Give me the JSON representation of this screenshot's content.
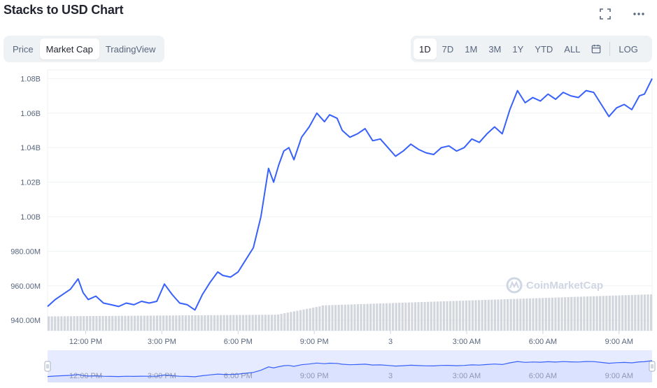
{
  "header": {
    "title": "Stacks to USD Chart"
  },
  "icons": {
    "fullscreen": "fullscreen-icon",
    "more": "more-icon",
    "calendar": "calendar-icon"
  },
  "view_tabs": [
    {
      "label": "Price",
      "active": false
    },
    {
      "label": "Market Cap",
      "active": true
    },
    {
      "label": "TradingView",
      "active": false
    }
  ],
  "range_tabs": [
    {
      "label": "1D",
      "active": true
    },
    {
      "label": "7D",
      "active": false
    },
    {
      "label": "1M",
      "active": false
    },
    {
      "label": "3M",
      "active": false
    },
    {
      "label": "1Y",
      "active": false
    },
    {
      "label": "YTD",
      "active": false
    },
    {
      "label": "ALL",
      "active": false
    }
  ],
  "log_label": "LOG",
  "watermark": "CoinMarketCap",
  "colors": {
    "line": "#3861fb",
    "grid": "#eff2f5",
    "volume": "#d2d6dd",
    "nav_fill": "#e6ebff"
  },
  "chart_data": {
    "type": "line",
    "title": "Stacks to USD Chart",
    "series_label": "Market Cap",
    "x_ticks": [
      "12:00 PM",
      "3:00 PM",
      "6:00 PM",
      "9:00 PM",
      "3",
      "3:00 AM",
      "6:00 AM",
      "9:00 AM"
    ],
    "y_ticks": [
      "940.00M",
      "960.00M",
      "980.00M",
      "1.00B",
      "1.02B",
      "1.04B",
      "1.06B",
      "1.08B"
    ],
    "y_tick_values": [
      940,
      960,
      980,
      1000,
      1020,
      1040,
      1060,
      1080
    ],
    "ylim": [
      934,
      1085
    ],
    "x_range_hours": [
      10.5,
      34.3
    ],
    "x": [
      10.5,
      10.8,
      11.1,
      11.4,
      11.7,
      11.9,
      12.1,
      12.4,
      12.7,
      13.0,
      13.3,
      13.6,
      13.9,
      14.2,
      14.5,
      14.8,
      15.1,
      15.4,
      15.7,
      16.0,
      16.3,
      16.6,
      16.9,
      17.2,
      17.4,
      17.7,
      18.0,
      18.3,
      18.6,
      18.9,
      19.2,
      19.4,
      19.6,
      19.8,
      20.0,
      20.2,
      20.5,
      20.8,
      21.1,
      21.4,
      21.6,
      21.9,
      22.1,
      22.4,
      22.7,
      23.0,
      23.3,
      23.6,
      23.9,
      24.2,
      24.5,
      24.8,
      25.1,
      25.4,
      25.7,
      26.0,
      26.3,
      26.6,
      26.9,
      27.2,
      27.5,
      27.8,
      28.1,
      28.4,
      28.7,
      29.0,
      29.3,
      29.6,
      29.9,
      30.2,
      30.5,
      30.8,
      31.1,
      31.4,
      31.7,
      32.0,
      32.3,
      32.6,
      32.9,
      33.2,
      33.5,
      33.8,
      34.0,
      34.3
    ],
    "values": [
      948,
      952,
      955,
      958,
      964,
      956,
      952,
      954,
      950,
      949,
      948,
      950,
      949,
      951,
      950,
      951,
      961,
      955,
      950,
      949,
      946,
      955,
      962,
      968,
      966,
      965,
      968,
      975,
      982,
      1000,
      1028,
      1020,
      1030,
      1038,
      1040,
      1033,
      1046,
      1052,
      1060,
      1055,
      1059,
      1057,
      1050,
      1046,
      1048,
      1051,
      1044,
      1045,
      1040,
      1035,
      1038,
      1042,
      1039,
      1037,
      1036,
      1040,
      1041,
      1038,
      1040,
      1045,
      1043,
      1048,
      1052,
      1048,
      1062,
      1073,
      1066,
      1069,
      1067,
      1071,
      1068,
      1072,
      1070,
      1069,
      1073,
      1072,
      1065,
      1058,
      1063,
      1065,
      1062,
      1070,
      1071,
      1080
    ],
    "volume_levels": [
      0.25,
      1.0
    ],
    "nav_x_ticks": [
      "12:00 PM",
      "3:00 PM",
      "6:00 PM",
      "9:00 PM",
      "3",
      "3:00 AM",
      "6:00 AM",
      "9:00 AM"
    ]
  }
}
